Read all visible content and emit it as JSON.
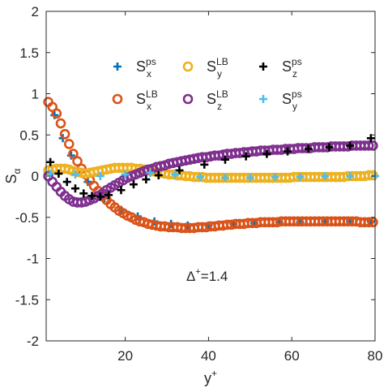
{
  "chart_data": {
    "type": "scatter",
    "title": "",
    "xlabel": "y",
    "xlabel_sup": "+",
    "ylabel": "S",
    "ylabel_sub": "α",
    "xlim": [
      1,
      80
    ],
    "ylim": [
      -2,
      2
    ],
    "xticks": [
      20,
      40,
      60,
      80
    ],
    "yticks": [
      -2,
      -1.5,
      -1,
      -0.5,
      0,
      0.5,
      1,
      1.5,
      2
    ],
    "grid": false,
    "legend_position": "top",
    "annotation": {
      "base": "Δ",
      "sup": "+",
      "rest": "=1.4"
    },
    "series": [
      {
        "name": "S_x^ps",
        "base": "S",
        "sub": "x",
        "sup": "ps",
        "marker": "plus",
        "color": "#0072BD",
        "x": [
          3,
          5,
          7,
          11,
          15,
          19,
          23,
          27,
          31,
          35,
          40,
          46,
          51,
          57,
          62,
          68,
          74,
          79
        ],
        "y": [
          0.74,
          0.46,
          0.25,
          -0.07,
          -0.27,
          -0.41,
          -0.49,
          -0.55,
          -0.58,
          -0.6,
          -0.6,
          -0.58,
          -0.57,
          -0.56,
          -0.56,
          -0.55,
          -0.55,
          -0.55
        ]
      },
      {
        "name": "S_x^LB",
        "base": "S",
        "sub": "x",
        "sup": "LB",
        "marker": "circle",
        "color": "#D95319",
        "x": [
          1.5,
          2.5,
          3.5,
          4.5,
          5.5,
          6.5,
          7.5,
          8.5,
          9.5,
          10.5,
          11.5,
          12.5,
          13.5,
          14.5,
          15.5,
          16.5,
          17.5,
          18.5,
          19.5,
          20.5,
          21.5,
          22.5,
          23.5,
          24.5,
          25.5,
          26.5,
          27.5,
          28.5,
          29.5,
          30.5,
          31.5,
          32.5,
          33.5,
          34.5,
          35.5,
          36.5,
          37.5,
          38.5,
          39.5,
          40.5,
          41.5,
          42.5,
          43.5,
          44.5,
          45.5,
          46.5,
          47.5,
          48.5,
          49.5,
          50.5,
          51.5,
          52.5,
          53.5,
          54.5,
          55.5,
          56.5,
          57.5,
          58.5,
          59.5,
          60.5,
          61.5,
          62.5,
          63.5,
          64.5,
          65.5,
          66.5,
          67.5,
          68.5,
          69.5,
          70.5,
          71.5,
          72.5,
          73.5,
          74.5,
          75.5,
          76.5,
          77.5,
          78.5,
          79.5
        ],
        "y": [
          0.9,
          0.84,
          0.76,
          0.64,
          0.51,
          0.39,
          0.27,
          0.18,
          0.09,
          0.02,
          -0.05,
          -0.12,
          -0.18,
          -0.24,
          -0.29,
          -0.34,
          -0.38,
          -0.42,
          -0.45,
          -0.48,
          -0.5,
          -0.53,
          -0.55,
          -0.56,
          -0.58,
          -0.59,
          -0.6,
          -0.61,
          -0.61,
          -0.62,
          -0.62,
          -0.62,
          -0.63,
          -0.63,
          -0.63,
          -0.63,
          -0.62,
          -0.62,
          -0.62,
          -0.61,
          -0.61,
          -0.6,
          -0.6,
          -0.59,
          -0.59,
          -0.58,
          -0.58,
          -0.58,
          -0.57,
          -0.57,
          -0.57,
          -0.56,
          -0.56,
          -0.56,
          -0.56,
          -0.56,
          -0.55,
          -0.55,
          -0.55,
          -0.55,
          -0.55,
          -0.55,
          -0.55,
          -0.55,
          -0.55,
          -0.55,
          -0.55,
          -0.55,
          -0.55,
          -0.55,
          -0.55,
          -0.55,
          -0.55,
          -0.55,
          -0.55,
          -0.56,
          -0.56,
          -0.56,
          -0.56
        ]
      },
      {
        "name": "S_y^LB",
        "base": "S",
        "sub": "y",
        "sup": "LB",
        "marker": "circle",
        "color": "#EDB120",
        "x": [
          1.5,
          2.5,
          3.5,
          4.5,
          5.5,
          6.5,
          7.5,
          8.5,
          9.5,
          10.5,
          11.5,
          12.5,
          13.5,
          14.5,
          15.5,
          16.5,
          17.5,
          18.5,
          19.5,
          20.5,
          21.5,
          22.5,
          23.5,
          24.5,
          25.5,
          26.5,
          27.5,
          28.5,
          29.5,
          30.5,
          31.5,
          32.5,
          33.5,
          34.5,
          35.5,
          36.5,
          37.5,
          38.5,
          39.5,
          40.5,
          41.5,
          42.5,
          43.5,
          44.5,
          45.5,
          46.5,
          47.5,
          48.5,
          49.5,
          50.5,
          51.5,
          52.5,
          53.5,
          54.5,
          55.5,
          56.5,
          57.5,
          58.5,
          59.5,
          60.5,
          61.5,
          62.5,
          63.5,
          64.5,
          65.5,
          66.5,
          67.5,
          68.5,
          69.5,
          70.5,
          71.5,
          72.5,
          73.5,
          74.5,
          75.5,
          76.5,
          77.5,
          78.5,
          79.5
        ],
        "y": [
          0.07,
          0.08,
          0.09,
          0.09,
          0.09,
          0.08,
          0.06,
          0.05,
          0.04,
          0.03,
          0.04,
          0.05,
          0.06,
          0.07,
          0.08,
          0.09,
          0.1,
          0.1,
          0.1,
          0.1,
          0.1,
          0.09,
          0.09,
          0.08,
          0.07,
          0.06,
          0.05,
          0.04,
          0.03,
          0.02,
          0.02,
          0.01,
          0.01,
          0.0,
          0.0,
          -0.01,
          -0.01,
          -0.01,
          -0.02,
          -0.02,
          -0.02,
          -0.02,
          -0.02,
          -0.02,
          -0.02,
          -0.02,
          -0.02,
          -0.02,
          -0.02,
          -0.02,
          -0.02,
          -0.02,
          -0.02,
          -0.02,
          -0.02,
          -0.02,
          -0.02,
          -0.02,
          -0.02,
          -0.01,
          -0.01,
          -0.01,
          -0.01,
          -0.01,
          -0.01,
          -0.01,
          -0.01,
          -0.01,
          -0.01,
          -0.01,
          -0.01,
          -0.01,
          0.0,
          0.0,
          0.0,
          0.0,
          0.0,
          0.01,
          0.01
        ]
      },
      {
        "name": "S_z^LB",
        "base": "S",
        "sub": "z",
        "sup": "LB",
        "marker": "circle",
        "color": "#7E2F8E",
        "x": [
          1.5,
          2.5,
          3.5,
          4.5,
          5.5,
          6.5,
          7.5,
          8.5,
          9.5,
          10.5,
          11.5,
          12.5,
          13.5,
          14.5,
          15.5,
          16.5,
          17.5,
          18.5,
          19.5,
          20.5,
          21.5,
          22.5,
          23.5,
          24.5,
          25.5,
          26.5,
          27.5,
          28.5,
          29.5,
          30.5,
          31.5,
          32.5,
          33.5,
          34.5,
          35.5,
          36.5,
          37.5,
          38.5,
          39.5,
          40.5,
          41.5,
          42.5,
          43.5,
          44.5,
          45.5,
          46.5,
          47.5,
          48.5,
          49.5,
          50.5,
          51.5,
          52.5,
          53.5,
          54.5,
          55.5,
          56.5,
          57.5,
          58.5,
          59.5,
          60.5,
          61.5,
          62.5,
          63.5,
          64.5,
          65.5,
          66.5,
          67.5,
          68.5,
          69.5,
          70.5,
          71.5,
          72.5,
          73.5,
          74.5,
          75.5,
          76.5,
          77.5,
          78.5,
          79.5
        ],
        "y": [
          0.0,
          -0.07,
          -0.13,
          -0.19,
          -0.24,
          -0.28,
          -0.31,
          -0.32,
          -0.32,
          -0.31,
          -0.29,
          -0.27,
          -0.24,
          -0.21,
          -0.17,
          -0.14,
          -0.11,
          -0.08,
          -0.05,
          -0.02,
          0.0,
          0.02,
          0.04,
          0.06,
          0.08,
          0.09,
          0.11,
          0.12,
          0.13,
          0.15,
          0.16,
          0.17,
          0.18,
          0.19,
          0.2,
          0.21,
          0.22,
          0.23,
          0.23,
          0.24,
          0.25,
          0.25,
          0.26,
          0.27,
          0.27,
          0.28,
          0.28,
          0.29,
          0.29,
          0.3,
          0.3,
          0.31,
          0.31,
          0.31,
          0.32,
          0.32,
          0.32,
          0.33,
          0.33,
          0.33,
          0.34,
          0.34,
          0.34,
          0.34,
          0.35,
          0.35,
          0.35,
          0.35,
          0.36,
          0.36,
          0.36,
          0.36,
          0.36,
          0.37,
          0.37,
          0.37,
          0.37,
          0.37,
          0.37
        ]
      },
      {
        "name": "S_z^ps",
        "base": "S",
        "sub": "z",
        "sup": "ps",
        "marker": "plus",
        "color": "#000000",
        "x": [
          2,
          4,
          6,
          8,
          10,
          12,
          14,
          16,
          19,
          22,
          25,
          28,
          33,
          39,
          44,
          49,
          54,
          59,
          64,
          69,
          74,
          79
        ],
        "y": [
          0.17,
          0.03,
          -0.07,
          -0.15,
          -0.21,
          -0.24,
          -0.25,
          -0.23,
          -0.17,
          -0.1,
          -0.04,
          0.01,
          0.07,
          0.14,
          0.2,
          0.24,
          0.27,
          0.3,
          0.33,
          0.35,
          0.37,
          0.46
        ]
      },
      {
        "name": "S_y^ps",
        "base": "S",
        "sub": "y",
        "sup": "ps",
        "marker": "plus",
        "color": "#4DBEEE",
        "x": [
          2,
          8,
          14,
          20,
          26,
          32,
          38,
          44,
          50,
          56,
          62,
          68,
          74,
          80
        ],
        "y": [
          0.03,
          0.02,
          0.0,
          0.02,
          0.04,
          0.02,
          -0.01,
          -0.02,
          -0.02,
          -0.01,
          -0.01,
          0.0,
          0.0,
          0.0
        ]
      }
    ]
  }
}
